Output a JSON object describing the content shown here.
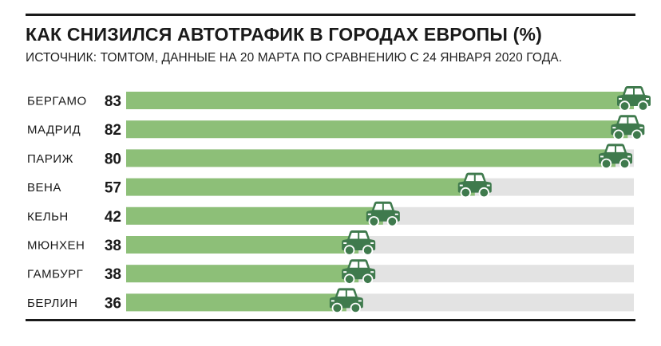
{
  "title": "КАК СНИЗИЛСЯ АВТОТРАФИК В ГОРОДАХ ЕВРОПЫ (%)",
  "subtitle": "ИСТОЧНИК: ТОМТОМ, ДАННЫЕ НА 20 МАРТА ПО СРАВНЕНИЮ С 24 ЯНВАРЯ 2020 ГОДА.",
  "colors": {
    "bar": "#8dbf78",
    "track": "#e3e3e3",
    "car": "#3f7a4d"
  },
  "chart_data": {
    "type": "bar",
    "orientation": "horizontal",
    "categories": [
      "БЕРГАМО",
      "МАДРИД",
      "ПАРИЖ",
      "ВЕНА",
      "КЕЛЬН",
      "МЮНХЕН",
      "ГАМБУРГ",
      "БЕРЛИН"
    ],
    "values": [
      83,
      82,
      80,
      57,
      42,
      38,
      38,
      36
    ],
    "xlim": [
      0,
      83
    ],
    "grid": false,
    "legend": "none"
  }
}
